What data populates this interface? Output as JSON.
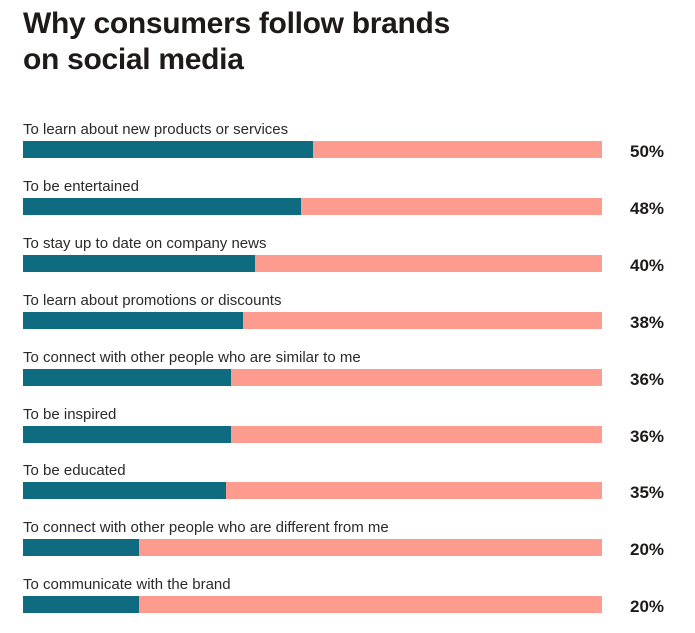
{
  "chart_data": {
    "type": "bar",
    "orientation": "horizontal",
    "title": "Why consumers follow brands on social media",
    "title_lines": [
      "Why consumers follow brands",
      "on social media"
    ],
    "categories": [
      "To learn about new products or services",
      "To be entertained",
      "To stay up to date on company news",
      "To learn about promotions or discounts",
      "To connect with other people who are similar to me",
      "To be inspired",
      "To be educated",
      "To connect with other people who are different from me",
      "To communicate with the brand"
    ],
    "values": [
      50,
      48,
      40,
      38,
      36,
      36,
      35,
      20,
      20
    ],
    "value_labels": [
      "50%",
      "48%",
      "40%",
      "38%",
      "36%",
      "36%",
      "35%",
      "20%",
      "20%"
    ],
    "xlim": [
      0,
      100
    ],
    "grid": false,
    "colors": {
      "fill": "#0f6b80",
      "track": "#fd9b8f"
    }
  }
}
